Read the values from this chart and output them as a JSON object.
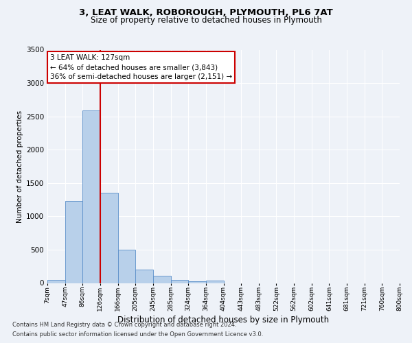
{
  "title": "3, LEAT WALK, ROBOROUGH, PLYMOUTH, PL6 7AT",
  "subtitle": "Size of property relative to detached houses in Plymouth",
  "xlabel": "Distribution of detached houses by size in Plymouth",
  "ylabel": "Number of detached properties",
  "bar_values": [
    50,
    1230,
    2590,
    1350,
    500,
    200,
    110,
    45,
    30,
    40,
    0,
    0,
    0,
    0,
    0,
    0,
    0,
    0,
    0,
    0
  ],
  "bar_labels": [
    "7sqm",
    "47sqm",
    "86sqm",
    "126sqm",
    "166sqm",
    "205sqm",
    "245sqm",
    "285sqm",
    "324sqm",
    "364sqm",
    "404sqm",
    "443sqm",
    "483sqm",
    "522sqm",
    "562sqm",
    "602sqm",
    "641sqm",
    "681sqm",
    "721sqm",
    "760sqm",
    "800sqm"
  ],
  "bar_color": "#b8d0ea",
  "bar_edge_color": "#5b8fc9",
  "vline_x": 3,
  "vline_color": "#cc0000",
  "annotation_title": "3 LEAT WALK: 127sqm",
  "annotation_line1": "← 64% of detached houses are smaller (3,843)",
  "annotation_line2": "36% of semi-detached houses are larger (2,151) →",
  "annotation_box_color": "#cc0000",
  "ylim": [
    0,
    3500
  ],
  "yticks": [
    0,
    500,
    1000,
    1500,
    2000,
    2500,
    3000,
    3500
  ],
  "footer_line1": "Contains HM Land Registry data © Crown copyright and database right 2024.",
  "footer_line2": "Contains public sector information licensed under the Open Government Licence v3.0.",
  "bg_color": "#eef2f8",
  "plot_bg_color": "#eef2f8",
  "grid_color": "#ffffff"
}
